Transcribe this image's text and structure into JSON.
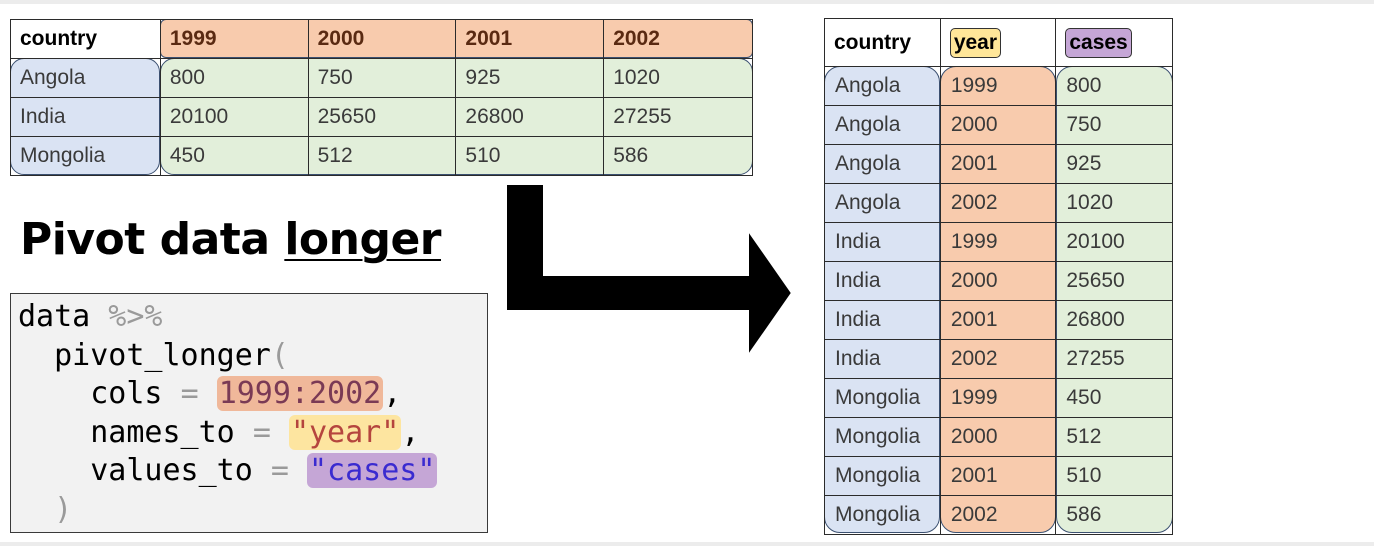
{
  "title": {
    "prefix": "Pivot data ",
    "underlined": "longer"
  },
  "wide_table": {
    "header": [
      "country",
      "1999",
      "2000",
      "2001",
      "2002"
    ],
    "rows": [
      [
        "Angola",
        "800",
        "750",
        "925",
        "1020"
      ],
      [
        "India",
        "20100",
        "25650",
        "26800",
        "27255"
      ],
      [
        "Mongolia",
        "450",
        "512",
        "510",
        "586"
      ]
    ]
  },
  "long_table": {
    "header": [
      "country",
      "year",
      "cases"
    ],
    "rows": [
      [
        "Angola",
        "1999",
        "800"
      ],
      [
        "Angola",
        "2000",
        "750"
      ],
      [
        "Angola",
        "2001",
        "925"
      ],
      [
        "Angola",
        "2002",
        "1020"
      ],
      [
        "India",
        "1999",
        "20100"
      ],
      [
        "India",
        "2000",
        "25650"
      ],
      [
        "India",
        "2001",
        "26800"
      ],
      [
        "India",
        "2002",
        "27255"
      ],
      [
        "Mongolia",
        "1999",
        "450"
      ],
      [
        "Mongolia",
        "2000",
        "512"
      ],
      [
        "Mongolia",
        "2001",
        "510"
      ],
      [
        "Mongolia",
        "2002",
        "586"
      ]
    ]
  },
  "code": {
    "line1_data": "data",
    "line1_pipe": " %>%",
    "line2_fn": "  pivot_longer",
    "line2_paren": "(",
    "line3_arg": "    cols ",
    "line3_eq": "=",
    "line3_val": "1999:2002",
    "line3_comma": ",",
    "line4_arg": "    names_to ",
    "line4_eq": "=",
    "line4_val": "\"year\"",
    "line4_comma": ",",
    "line5_arg": "    values_to ",
    "line5_eq": "=",
    "line5_val": "\"cases\"",
    "line6_paren": "  )"
  },
  "colors": {
    "country_band": "#dae3f3",
    "year_band": "#f8cbad",
    "value_band": "#e2efda",
    "year_chip": "#ffe699",
    "cases_chip": "#c5a6d6",
    "arrow": "#000000"
  }
}
